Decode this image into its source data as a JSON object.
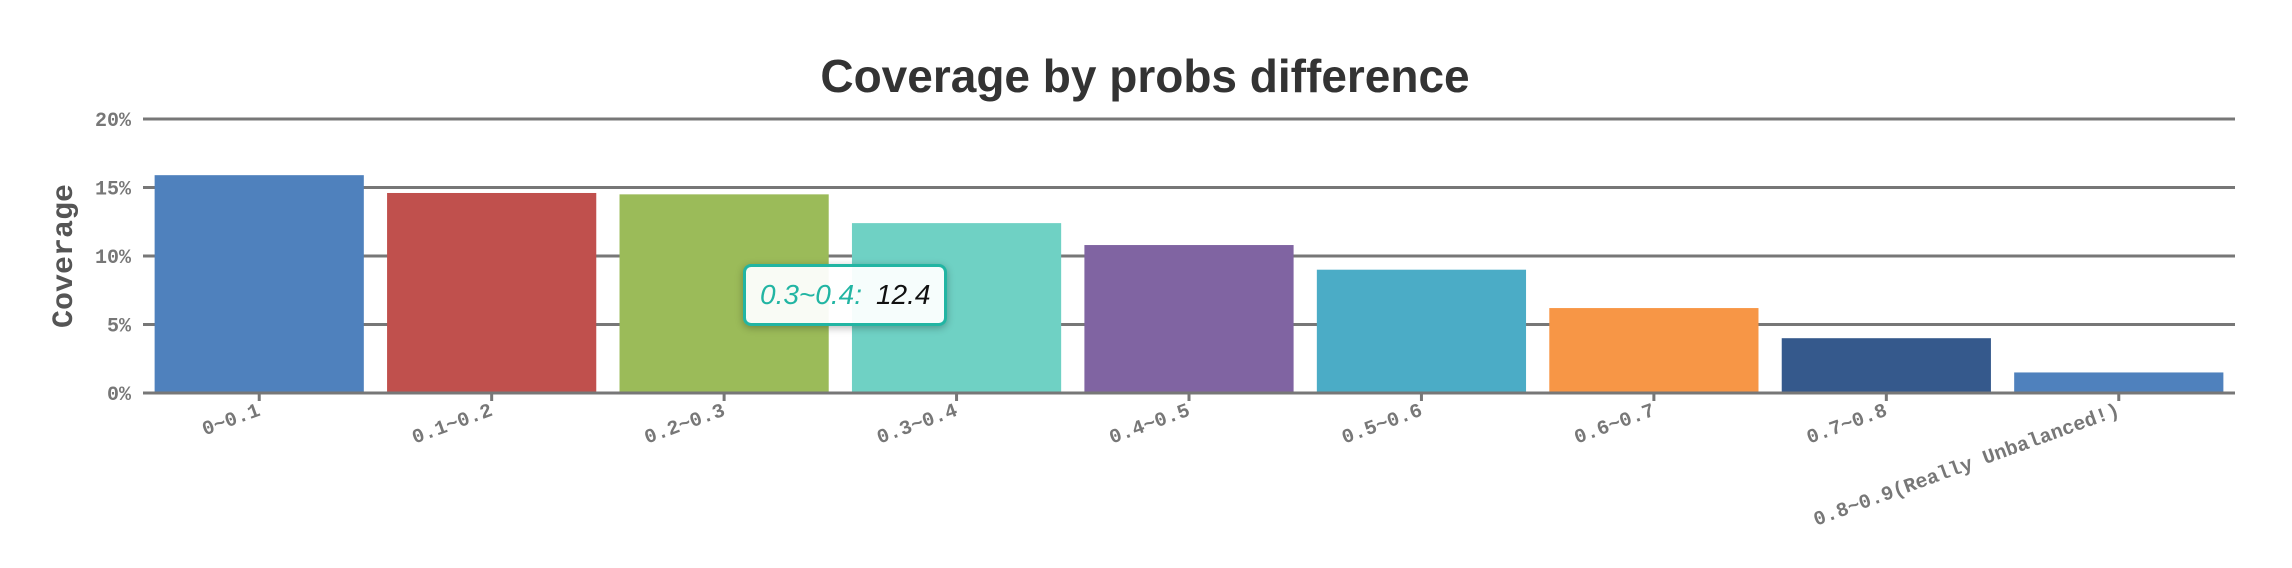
{
  "chart_data": {
    "type": "bar",
    "title": "Coverage by probs difference",
    "ylabel": "Coverage",
    "xlabel": "",
    "categories": [
      "0~0.1",
      "0.1~0.2",
      "0.2~0.3",
      "0.3~0.4",
      "0.4~0.5",
      "0.5~0.6",
      "0.6~0.7",
      "0.7~0.8",
      "0.8~0.9(Really Unbalanced!)"
    ],
    "values": [
      15.9,
      14.6,
      14.5,
      12.4,
      10.8,
      9.0,
      6.2,
      4.0,
      1.5
    ],
    "colors": [
      "#4f81bd",
      "#c0504d",
      "#9bbb59",
      "#6fd1c4",
      "#8064a2",
      "#4bacc6",
      "#f79646",
      "#35598c",
      "#4f81bd"
    ],
    "ylim": [
      0,
      20
    ],
    "yticks": [
      0,
      5,
      10,
      15,
      20
    ],
    "ytick_labels": [
      "0%",
      "5%",
      "10%",
      "15%",
      "20%"
    ],
    "grid": true,
    "legend": "none"
  },
  "tooltip": {
    "label": "0.3~0.4:",
    "value": "12.4",
    "border_color": "#22b5a3"
  }
}
